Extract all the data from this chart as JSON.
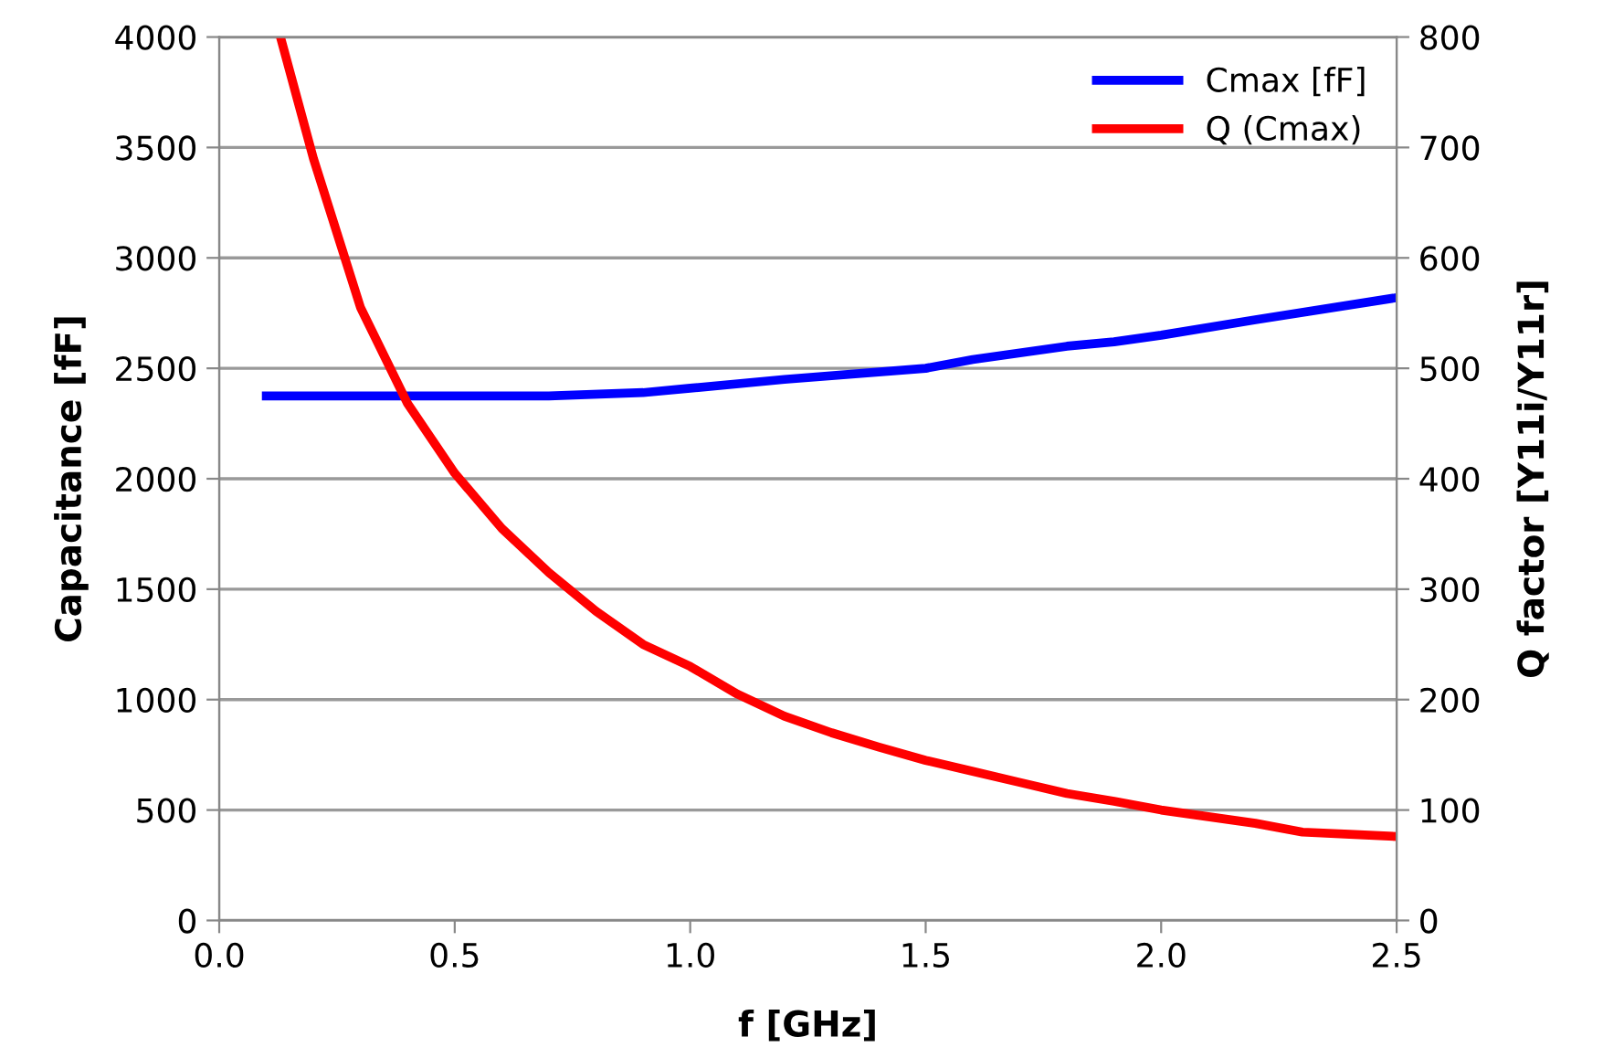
{
  "chart_data": {
    "type": "line",
    "xlabel": "f [GHz]",
    "ylabel": "Capacitance [fF]",
    "y2label": "Q factor [Y11i/Y11r]",
    "xlim": [
      0,
      2.5
    ],
    "xticks": [
      {
        "value": 0,
        "label": "0.0"
      },
      0.5,
      {
        "value": 1,
        "label": "1.0"
      },
      1.5,
      {
        "value": 2,
        "label": "2.0"
      },
      2.5
    ],
    "ylim": [
      0,
      4000
    ],
    "yticks": [
      0,
      500,
      1000,
      1500,
      2000,
      2500,
      3000,
      3500,
      4000
    ],
    "y2lim": [
      0,
      800
    ],
    "y2ticks": [
      0,
      100,
      200,
      300,
      400,
      500,
      600,
      700,
      800
    ],
    "grid": "y",
    "legend": "top right",
    "line_style": "solid",
    "marker": "none",
    "series": [
      {
        "name": "Cmax [fF]",
        "color": "#0000ff",
        "x": [
          0.1,
          0.3,
          0.5,
          0.7,
          0.9,
          1.0,
          1.2,
          1.5,
          1.6,
          1.8,
          1.9,
          2.0,
          2.2,
          2.5
        ],
        "values": [
          2375,
          2375,
          2375,
          2375,
          2390,
          2410,
          2450,
          2500,
          2540,
          2600,
          2620,
          2650,
          2720,
          2820
        ]
      },
      {
        "name": "Q (Cmax)",
        "color": "#ff0000",
        "axis": "y2",
        "x": [
          0.13,
          0.2,
          0.3,
          0.4,
          0.5,
          0.6,
          0.7,
          0.8,
          0.9,
          1.0,
          1.1,
          1.2,
          1.3,
          1.4,
          1.5,
          1.6,
          1.7,
          1.8,
          1.9,
          2.0,
          2.1,
          2.2,
          2.3,
          2.4,
          2.5
        ],
        "values": [
          800,
          690,
          555,
          468,
          405,
          355,
          315,
          280,
          250,
          230,
          205,
          185,
          170,
          157,
          145,
          135,
          125,
          115,
          108,
          100,
          94,
          88,
          80,
          78,
          76
        ]
      }
    ]
  }
}
